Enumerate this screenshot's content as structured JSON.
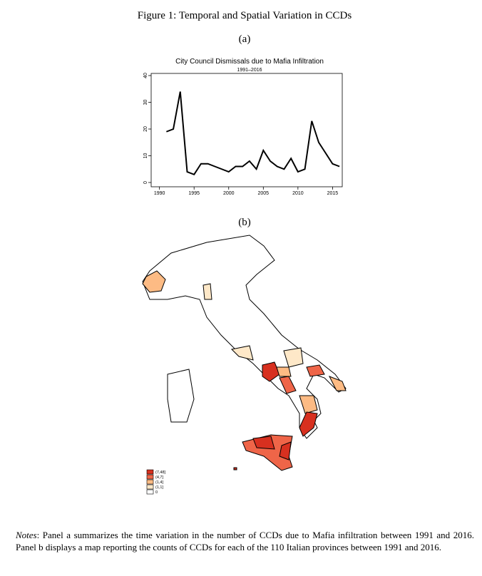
{
  "figure_title": "Figure 1: Temporal and Spatial Variation in CCDs",
  "panel_a_label": "(a)",
  "chart_data": {
    "type": "line",
    "title": "City Council Dismissals due to Mafia Infiltration",
    "subtitle": "1991–2016",
    "x": [
      1991,
      1992,
      1993,
      1994,
      1995,
      1996,
      1997,
      1998,
      1999,
      2000,
      2001,
      2002,
      2003,
      2004,
      2005,
      2006,
      2007,
      2008,
      2009,
      2010,
      2011,
      2012,
      2013,
      2014,
      2015,
      2016
    ],
    "values": [
      19,
      20,
      34,
      4,
      3,
      7,
      7,
      6,
      5,
      4,
      6,
      6,
      8,
      5,
      12,
      8,
      6,
      5,
      9,
      4,
      5,
      23,
      15,
      11,
      7,
      6
    ],
    "color": "#000000",
    "xlim": [
      1988.8,
      2016.4
    ],
    "xticks": [
      1990,
      1995,
      2000,
      2005,
      2010,
      2015
    ],
    "ylim": [
      -1.6,
      40.8
    ],
    "yticks": [
      0,
      10,
      20,
      30,
      40
    ]
  },
  "panel_b_label": "(b)",
  "map": {
    "legend": [
      {
        "label": "(7,48]",
        "color": "#d7301f"
      },
      {
        "label": "(4,7]",
        "color": "#ef6548"
      },
      {
        "label": "(1,4]",
        "color": "#fdbb84"
      },
      {
        "label": "(1,1]",
        "color": "#fee8c8"
      },
      {
        "label": "0",
        "color": "#ffffff"
      }
    ]
  },
  "notes": {
    "label": "Notes",
    "text": ": Panel a summarizes the time variation in the number of CCDs due to Mafia infiltration between 1991 and 2016. Panel b displays a map reporting the counts of CCDs for each of the 110 Italian provinces between 1991 and 2016."
  }
}
